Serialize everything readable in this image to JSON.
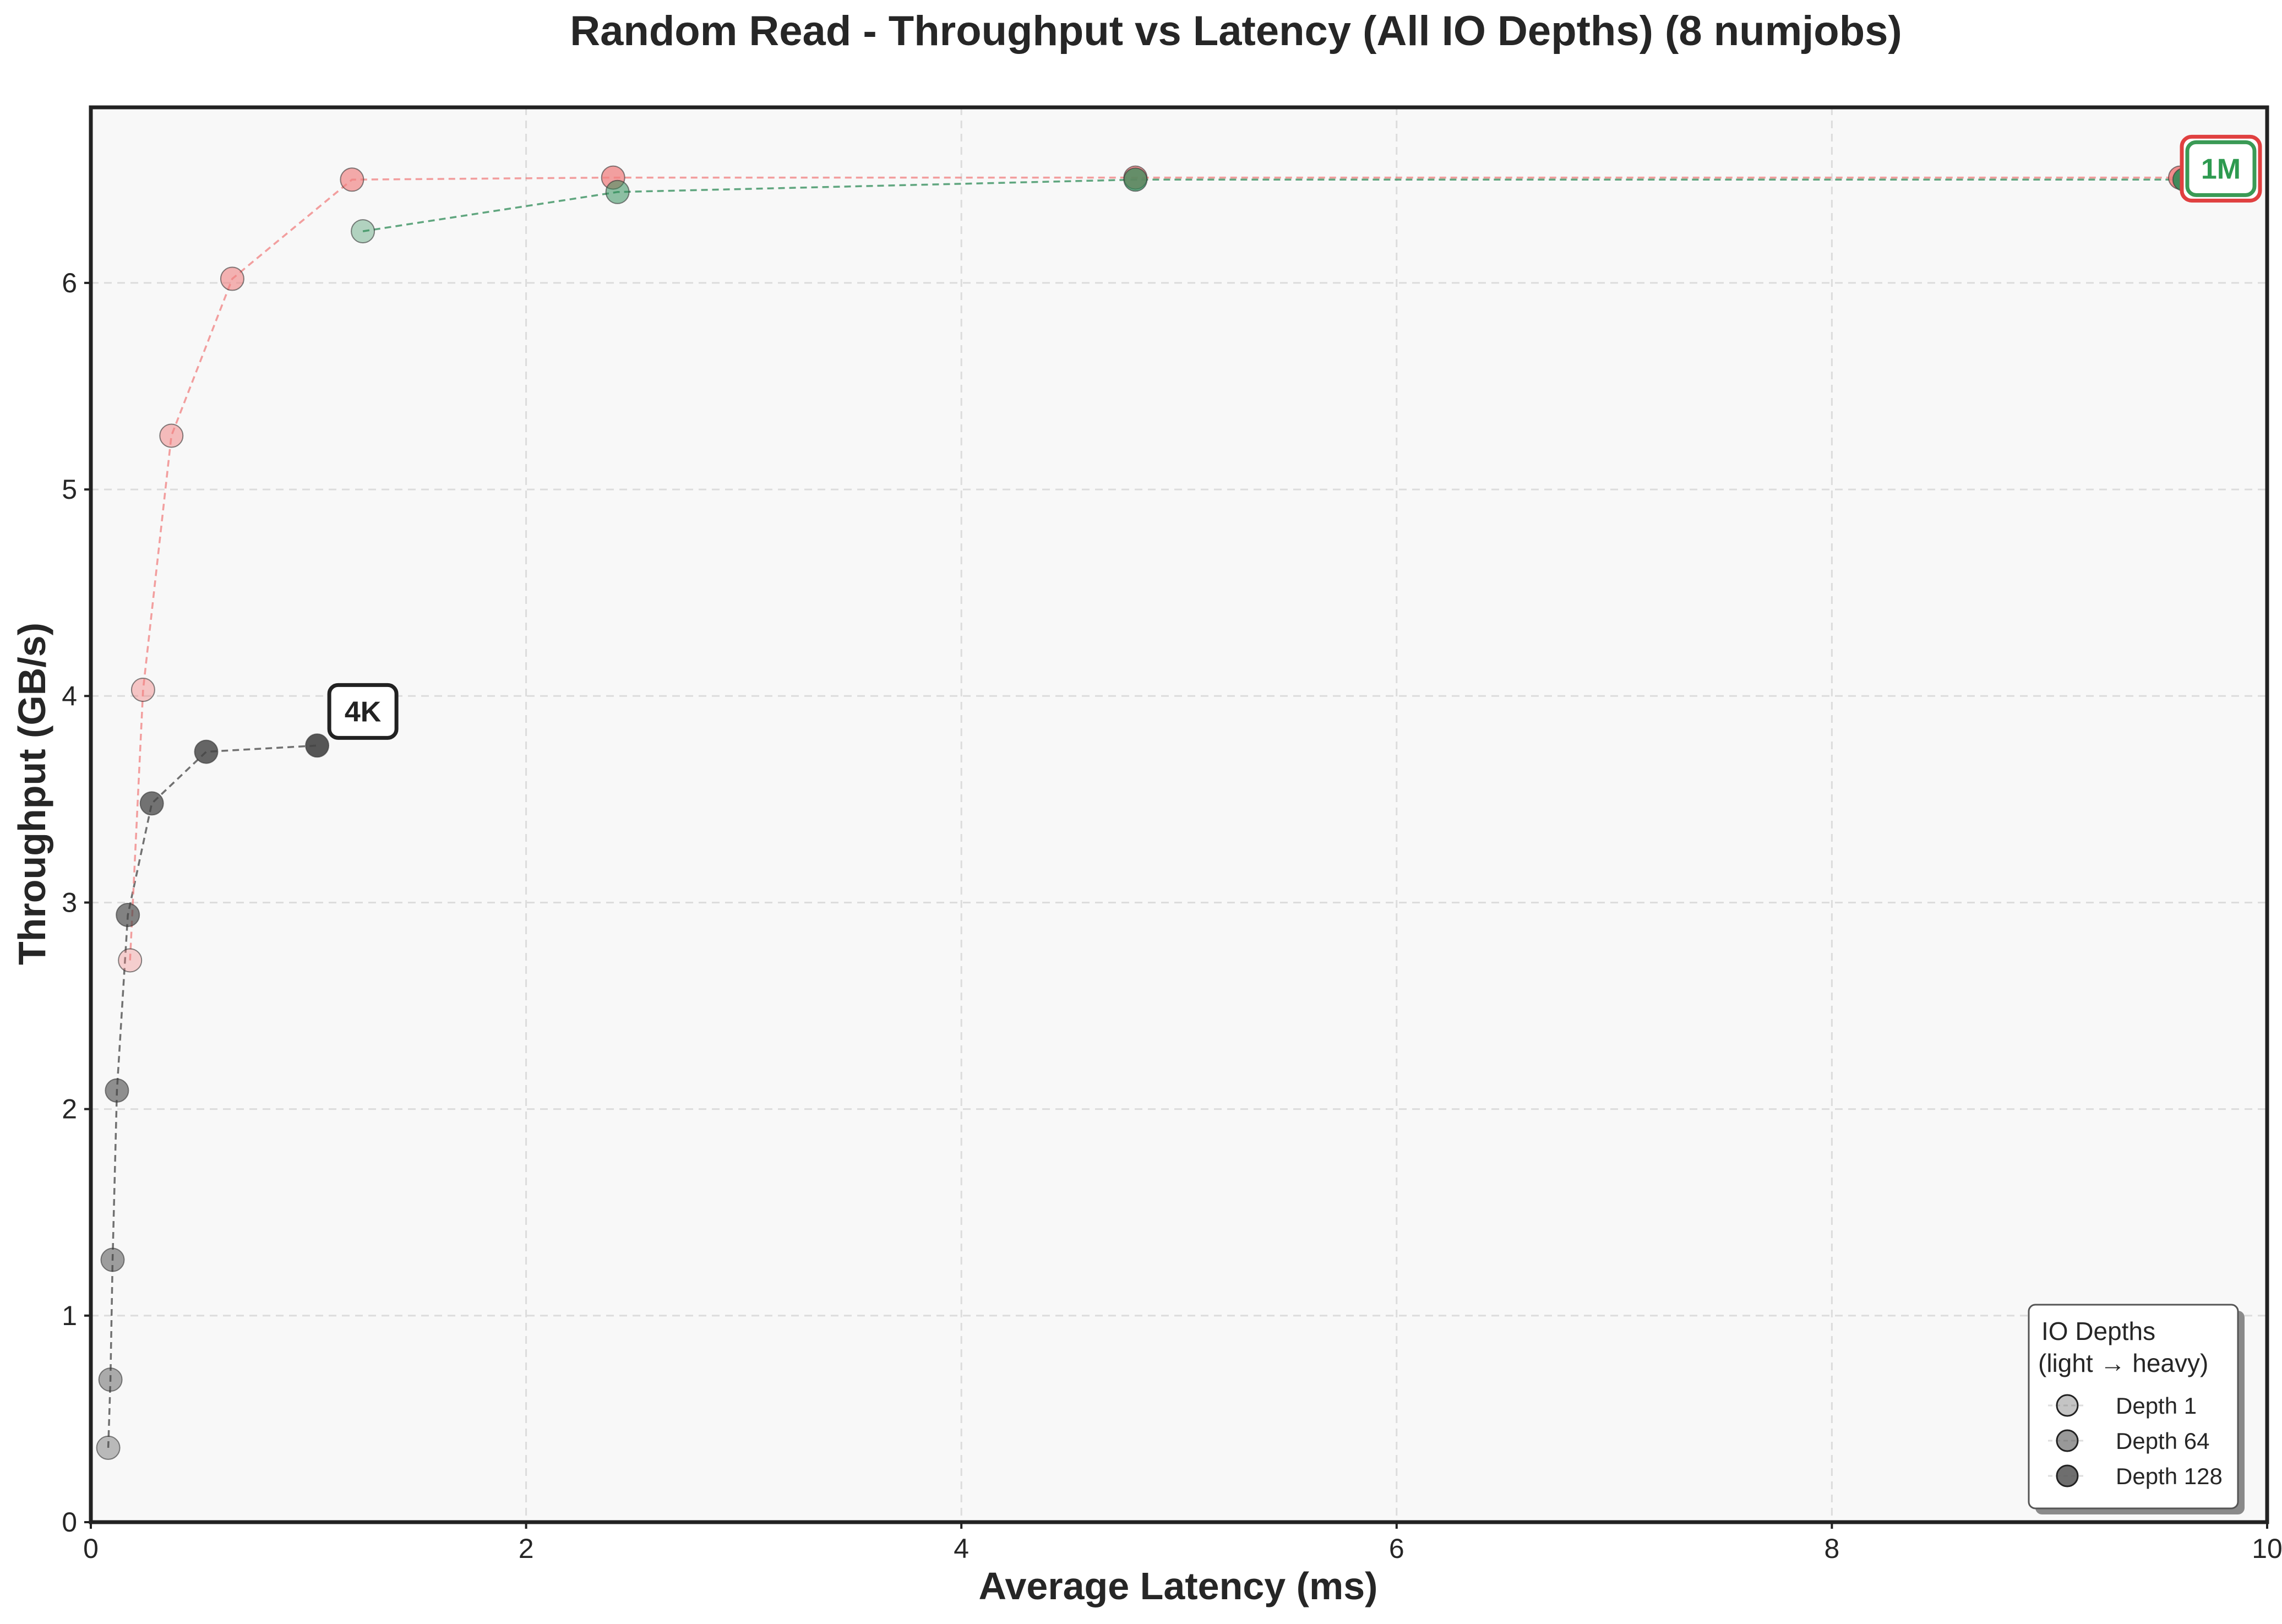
{
  "chart_data": {
    "type": "scatter",
    "title": "Random Read - Throughput vs Latency (All IO Depths) (8 numjobs)",
    "xlabel": "Average Latency (ms)",
    "ylabel": "Throughput (GB/s)",
    "xlim": [
      0,
      10
    ],
    "ylim": [
      0,
      6.85
    ],
    "xticks": [
      0,
      2,
      4,
      6,
      8,
      10
    ],
    "yticks": [
      0,
      1,
      2,
      3,
      4,
      5,
      6
    ],
    "grid": true,
    "legend_placement": "lower-right",
    "legend": {
      "title_line1": "IO Depths",
      "title_line2": "(light → heavy)",
      "items": [
        {
          "label": "Depth 1",
          "opacity": 0.35
        },
        {
          "label": "Depth 64",
          "opacity": 0.6
        },
        {
          "label": "Depth 128",
          "opacity": 0.85
        }
      ]
    },
    "series": [
      {
        "name": "4K",
        "color": "#444444",
        "points": [
          {
            "x": 0.08,
            "y": 0.36
          },
          {
            "x": 0.09,
            "y": 0.69
          },
          {
            "x": 0.1,
            "y": 1.27
          },
          {
            "x": 0.12,
            "y": 2.09
          },
          {
            "x": 0.17,
            "y": 2.94
          },
          {
            "x": 0.28,
            "y": 3.48
          },
          {
            "x": 0.53,
            "y": 3.73
          },
          {
            "x": 1.04,
            "y": 3.76
          }
        ]
      },
      {
        "name": "",
        "color": "#f08080",
        "points": [
          {
            "x": 0.18,
            "y": 2.72
          },
          {
            "x": 0.24,
            "y": 4.03
          },
          {
            "x": 0.37,
            "y": 5.26
          },
          {
            "x": 0.65,
            "y": 6.02
          },
          {
            "x": 1.2,
            "y": 6.5
          },
          {
            "x": 2.4,
            "y": 6.51
          },
          {
            "x": 4.8,
            "y": 6.51
          },
          {
            "x": 9.6,
            "y": 6.51
          }
        ]
      },
      {
        "name": "1M",
        "color": "#2e8b57",
        "points": [
          {
            "x": 1.25,
            "y": 6.25
          },
          {
            "x": 2.42,
            "y": 6.44
          },
          {
            "x": 4.8,
            "y": 6.5
          },
          {
            "x": 9.62,
            "y": 6.5
          }
        ]
      }
    ],
    "annotations": [
      {
        "text": "4K",
        "x": 1.04,
        "y": 3.76,
        "text_color": "#222222",
        "box_color": "#222222"
      },
      {
        "text": "1M",
        "x": 9.62,
        "y": 6.5,
        "text_color": "#2e9a50",
        "box_color": "#3a9a55",
        "outer_box_color": "#e04040"
      }
    ]
  }
}
